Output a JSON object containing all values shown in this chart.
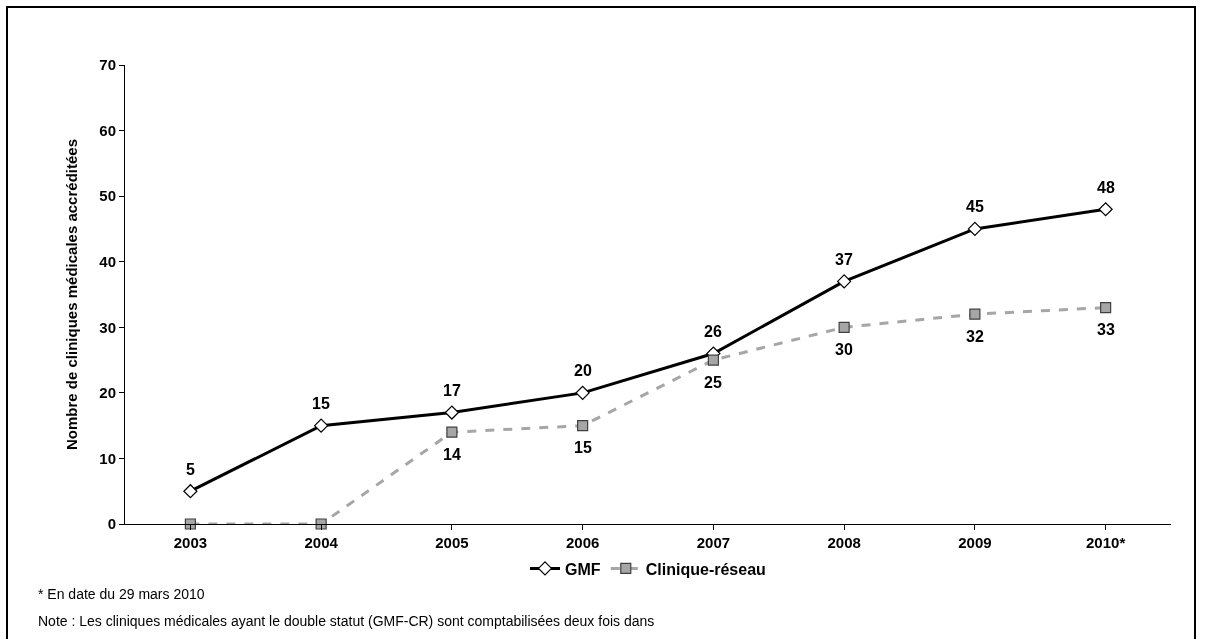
{
  "chart_data": {
    "type": "line",
    "ylabel": "Nombre de cliniques médicales accréditées",
    "categories": [
      "2003",
      "2004",
      "2005",
      "2006",
      "2007",
      "2008",
      "2009",
      "2010*"
    ],
    "series": [
      {
        "name": "GMF",
        "color": "#000000",
        "marker": "diamond",
        "line_style": "solid",
        "values": [
          5,
          15,
          17,
          20,
          26,
          37,
          45,
          48
        ],
        "value_labels": [
          "5",
          "15",
          "17",
          "20",
          "26",
          "37",
          "45",
          "48"
        ]
      },
      {
        "name": "Clinique-réseau",
        "color": "#a6a6a6",
        "marker": "square",
        "line_style": "dashed",
        "values": [
          0,
          0,
          14,
          15,
          25,
          30,
          32,
          33
        ],
        "value_labels": [
          null,
          null,
          "14",
          "15",
          "25",
          "30",
          "32",
          "33"
        ]
      }
    ],
    "ylim": [
      0,
      70
    ],
    "yticks": [
      0,
      10,
      20,
      30,
      40,
      50,
      60,
      70
    ],
    "grid": false,
    "legend": "bottom",
    "annotations": [
      "* En date du 29 mars 2010",
      "Note : Les cliniques médicales ayant le double statut (GMF-CR) sont comptabilisées deux fois dans"
    ]
  }
}
